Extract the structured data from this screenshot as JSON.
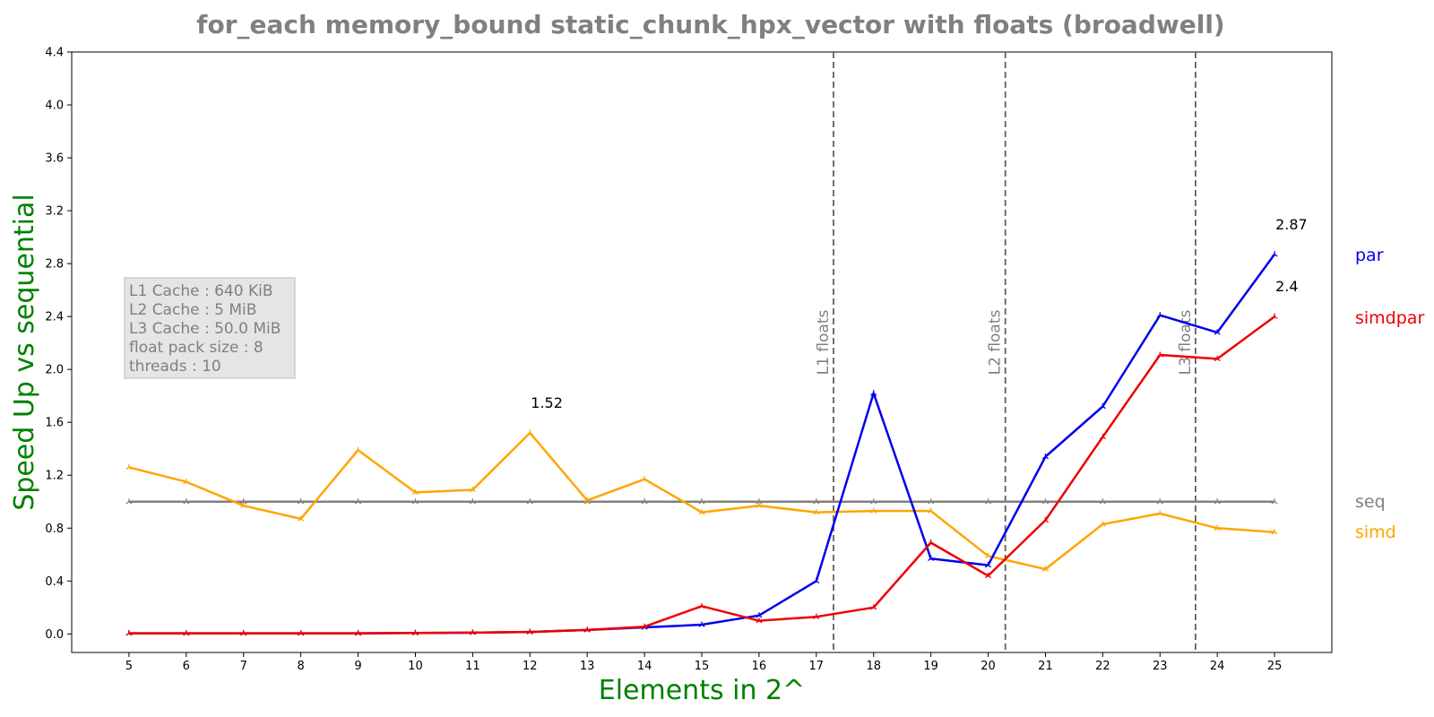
{
  "chart_data": {
    "type": "line",
    "title": "for_each memory_bound static_chunk_hpx_vector with floats  (broadwell)",
    "xlabel": "Elements in 2^",
    "ylabel": "Speed Up vs sequential",
    "x": [
      5,
      6,
      7,
      8,
      9,
      10,
      11,
      12,
      13,
      14,
      15,
      16,
      17,
      18,
      19,
      20,
      21,
      22,
      23,
      24,
      25
    ],
    "x_ticks": [
      "5",
      "6",
      "7",
      "8",
      "9",
      "10",
      "11",
      "12",
      "13",
      "14",
      "15",
      "16",
      "17",
      "18",
      "19",
      "20",
      "21",
      "22",
      "23",
      "24",
      "25"
    ],
    "xlim": [
      4,
      26
    ],
    "ylim": [
      -0.14,
      4.4
    ],
    "y_ticks": [
      "0.0",
      "0.4",
      "0.8",
      "1.2",
      "1.6",
      "2.0",
      "2.4",
      "2.8",
      "3.2",
      "3.6",
      "4.0",
      "4.4"
    ],
    "grid": false,
    "legend_placement": "right",
    "series": [
      {
        "name": "seq",
        "color": "#808080",
        "values": [
          1,
          1,
          1,
          1,
          1,
          1,
          1,
          1,
          1,
          1,
          1,
          1,
          1,
          1,
          1,
          1,
          1,
          1,
          1,
          1,
          1
        ]
      },
      {
        "name": "simd",
        "color": "#FFA500",
        "values": [
          1.26,
          1.15,
          0.97,
          0.87,
          1.39,
          1.07,
          1.09,
          1.52,
          1.01,
          1.17,
          0.92,
          0.97,
          0.92,
          0.93,
          0.93,
          0.59,
          0.49,
          0.83,
          0.91,
          0.8,
          0.77
        ]
      },
      {
        "name": "par",
        "color": "#0000EE",
        "values": [
          0.005,
          0.005,
          0.005,
          0.005,
          0.005,
          0.007,
          0.01,
          0.015,
          0.03,
          0.05,
          0.07,
          0.14,
          0.4,
          1.82,
          0.57,
          0.52,
          1.34,
          1.72,
          2.41,
          2.28,
          2.87
        ]
      },
      {
        "name": "simdpar",
        "color": "#EE0000",
        "values": [
          0.005,
          0.005,
          0.005,
          0.005,
          0.005,
          0.007,
          0.01,
          0.015,
          0.03,
          0.055,
          0.21,
          0.1,
          0.13,
          0.2,
          0.69,
          0.44,
          0.86,
          1.49,
          2.11,
          2.08,
          2.4
        ]
      }
    ],
    "vertical_lines": [
      {
        "x": 17.3,
        "label": "L1 floats"
      },
      {
        "x": 20.3,
        "label": "L2 floats"
      },
      {
        "x": 23.62,
        "label": "L3 floats"
      }
    ],
    "annotations": [
      {
        "x": 12,
        "y": 1.52,
        "text": "1.52"
      },
      {
        "x": 25,
        "y": 2.87,
        "text": "2.87"
      },
      {
        "x": 25,
        "y": 2.4,
        "text": "2.4"
      }
    ],
    "info_box": [
      "L1 Cache : 640 KiB",
      "L2 Cache : 5 MiB",
      "L3 Cache : 50.0 MiB",
      "float pack size : 8",
      "threads : 10"
    ],
    "colors": {
      "title": "#808080",
      "axis_labels": "#008000",
      "vline": "#606060",
      "info_bg": "#E5E5E5",
      "info_border": "#BBBBBB"
    }
  }
}
